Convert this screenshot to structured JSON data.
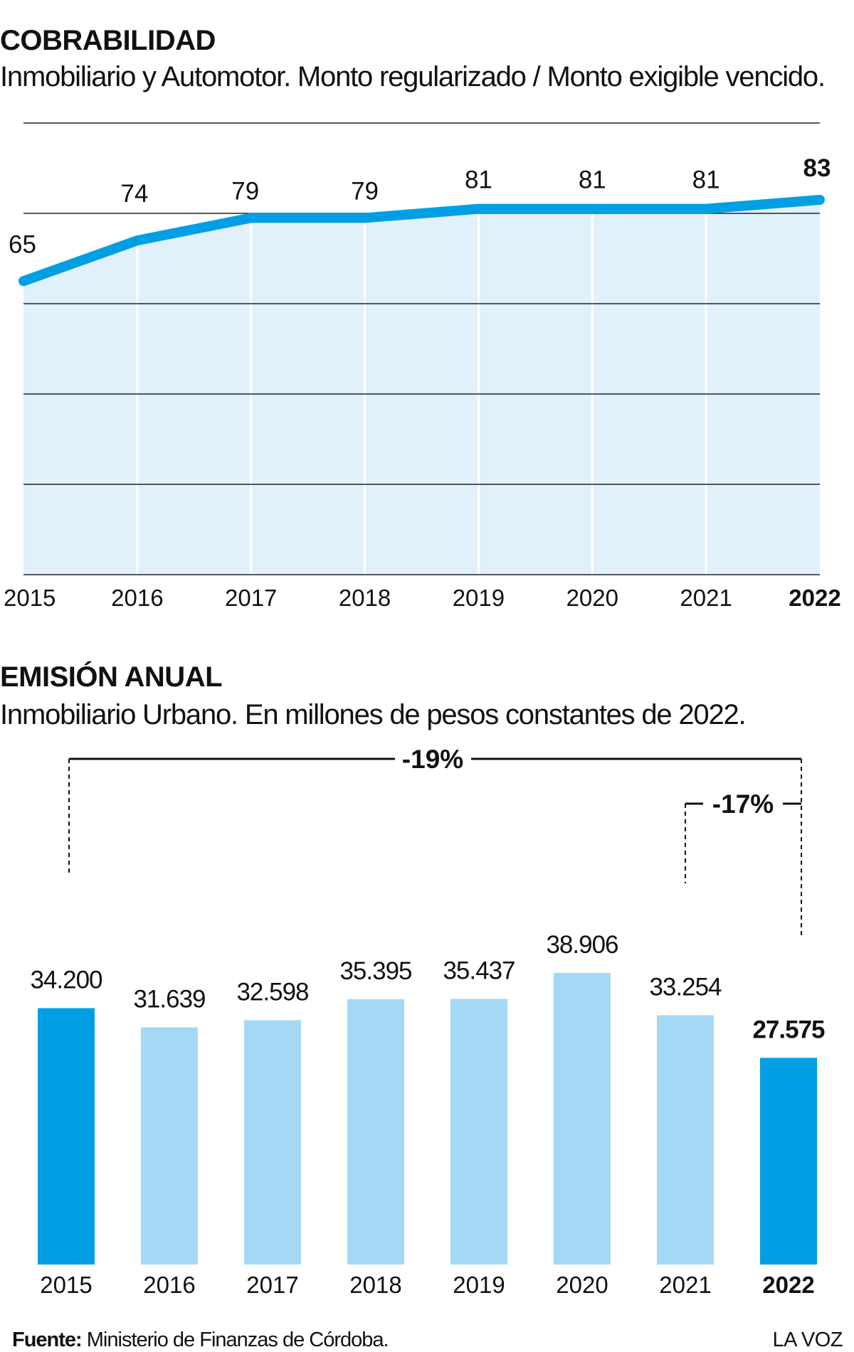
{
  "chart_data": [
    {
      "type": "area",
      "title": "COBRABILIDAD",
      "subtitle": "Inmobiliario y Automotor. Monto regularizado / Monto exigible vencido.",
      "categories": [
        "2015",
        "2016",
        "2017",
        "2018",
        "2019",
        "2020",
        "2021",
        "2022"
      ],
      "values": [
        65,
        74,
        79,
        79,
        81,
        81,
        81,
        83
      ],
      "data_labels": [
        "65",
        "74",
        "79",
        "79",
        "81",
        "81",
        "81",
        "83"
      ],
      "highlight_last": true,
      "ylim": [
        0,
        100
      ],
      "grid": true,
      "colors": {
        "line": "#009fe3",
        "fill": "#e0f1fc",
        "grid_h": "#222222",
        "grid_v": "#ffffff"
      }
    },
    {
      "type": "bar",
      "title": "EMISIÓN ANUAL",
      "subtitle": "Inmobiliario Urbano. En millones de pesos constantes de 2022.",
      "categories": [
        "2015",
        "2016",
        "2017",
        "2018",
        "2019",
        "2020",
        "2021",
        "2022"
      ],
      "values": [
        34200,
        31639,
        32598,
        35395,
        35437,
        38906,
        33254,
        27575
      ],
      "data_labels": [
        "34.200",
        "31.639",
        "32.598",
        "35.395",
        "35.437",
        "38.906",
        "33.254",
        "27.575"
      ],
      "highlight": [
        "2015",
        "2022"
      ],
      "annotations": [
        {
          "label": "-19%",
          "from": "2015",
          "to": "2022"
        },
        {
          "label": "-17%",
          "from": "2021",
          "to": "2022"
        }
      ],
      "ylim": [
        0,
        40000
      ],
      "colors": {
        "bar": "#a4d8f5",
        "highlight": "#009fe3"
      }
    }
  ],
  "footer": {
    "source_label": "Fuente:",
    "source_text": " Ministerio de Finanzas de Córdoba.",
    "brand": "LA VOZ"
  }
}
